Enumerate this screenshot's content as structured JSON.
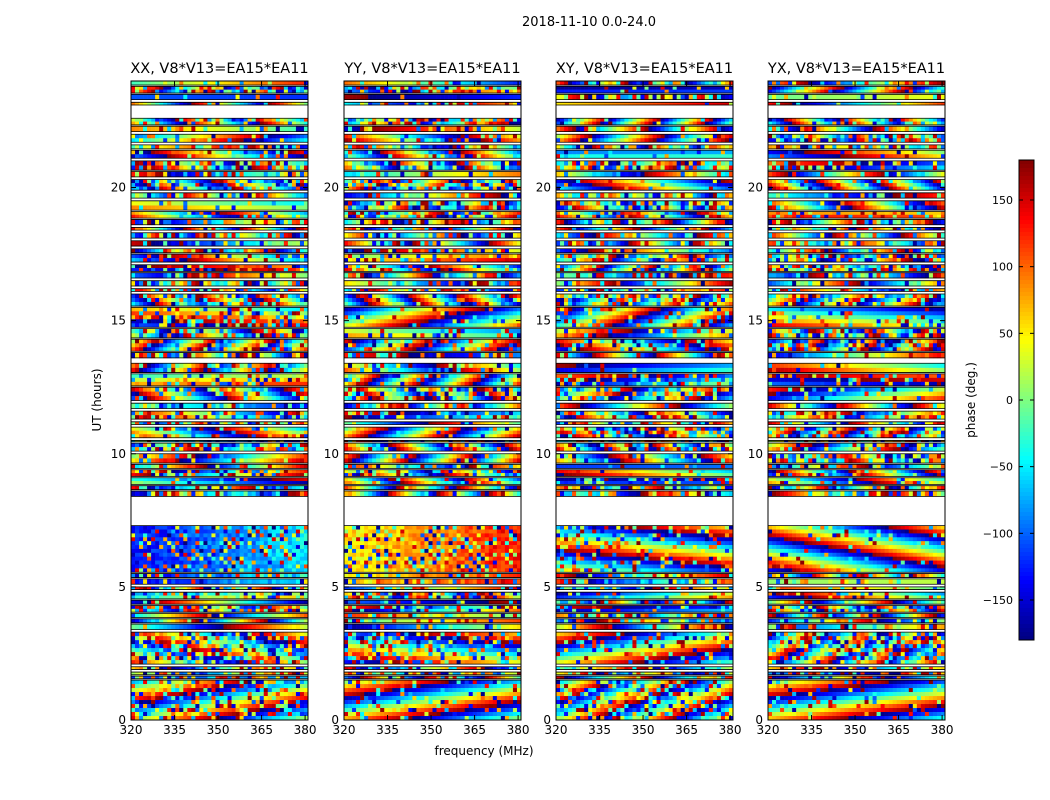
{
  "figure": {
    "suptitle": "2018-11-10 0.0-24.0",
    "xlabel": "frequency (MHz)",
    "ylabel": "UT (hours)",
    "colorbar_label": "phase (deg.)"
  },
  "chart_data": {
    "type": "heatmap",
    "title": "2018-11-10 0.0-24.0",
    "xlabel": "frequency (MHz)",
    "ylabel": "UT (hours)",
    "xlim": [
      320,
      381
    ],
    "ylim": [
      0,
      24
    ],
    "x_ticks": [
      320,
      335,
      350,
      365,
      380
    ],
    "y_ticks": [
      0,
      5,
      10,
      15,
      20
    ],
    "colorbar": {
      "label": "phase (deg.)",
      "range": [
        -180,
        180
      ],
      "ticks": [
        -150,
        -100,
        -50,
        0,
        50,
        100,
        150
      ],
      "tick_labels": [
        "−150",
        "−100",
        "−50",
        "0",
        "50",
        "100",
        "150"
      ],
      "colormap": "jet"
    },
    "panels": [
      {
        "name": "XX",
        "title": "XX, V8*V13=EA15*EA11"
      },
      {
        "name": "YY",
        "title": "YY, V8*V13=EA15*EA11"
      },
      {
        "name": "XY",
        "title": "XY, V8*V13=EA15*EA11"
      },
      {
        "name": "YX",
        "title": "YX, V8*V13=EA15*EA11"
      }
    ],
    "data_segments_hours": [
      [
        0.0,
        1.5
      ],
      [
        1.55,
        1.65
      ],
      [
        1.7,
        1.8
      ],
      [
        1.9,
        2.0
      ],
      [
        2.1,
        3.3
      ],
      [
        3.4,
        3.6
      ],
      [
        3.65,
        3.8
      ],
      [
        3.85,
        4.0
      ],
      [
        4.05,
        4.3
      ],
      [
        4.35,
        4.5
      ],
      [
        4.55,
        4.8
      ],
      [
        4.9,
        5.0
      ],
      [
        5.1,
        5.3
      ],
      [
        5.35,
        5.5
      ],
      [
        5.55,
        7.3
      ],
      [
        8.4,
        8.6
      ],
      [
        8.65,
        8.8
      ],
      [
        8.85,
        9.1
      ],
      [
        9.15,
        9.4
      ],
      [
        9.45,
        9.6
      ],
      [
        9.65,
        10.0
      ],
      [
        10.1,
        10.4
      ],
      [
        10.45,
        10.5
      ],
      [
        10.6,
        11.0
      ],
      [
        11.1,
        11.2
      ],
      [
        11.3,
        11.6
      ],
      [
        11.7,
        11.9
      ],
      [
        12.0,
        12.5
      ],
      [
        12.55,
        13.0
      ],
      [
        13.05,
        13.4
      ],
      [
        13.6,
        13.8
      ],
      [
        13.85,
        14.3
      ],
      [
        14.35,
        14.7
      ],
      [
        14.75,
        15.5
      ],
      [
        15.55,
        16.0
      ],
      [
        16.1,
        16.2
      ],
      [
        16.3,
        16.5
      ],
      [
        16.6,
        16.8
      ],
      [
        16.85,
        17.1
      ],
      [
        17.2,
        17.5
      ],
      [
        17.55,
        17.7
      ],
      [
        17.8,
        18.0
      ],
      [
        18.1,
        18.3
      ],
      [
        18.4,
        18.5
      ],
      [
        18.6,
        18.8
      ],
      [
        18.85,
        19.1
      ],
      [
        19.15,
        19.5
      ],
      [
        19.6,
        19.8
      ],
      [
        19.9,
        20.3
      ],
      [
        20.4,
        20.6
      ],
      [
        20.65,
        21.0
      ],
      [
        21.1,
        21.4
      ],
      [
        21.45,
        21.6
      ],
      [
        21.7,
        22.0
      ],
      [
        22.1,
        22.3
      ],
      [
        22.35,
        22.6
      ],
      [
        23.1,
        23.2
      ],
      [
        23.3,
        23.5
      ],
      [
        23.55,
        23.8
      ],
      [
        23.85,
        24.0
      ]
    ]
  }
}
